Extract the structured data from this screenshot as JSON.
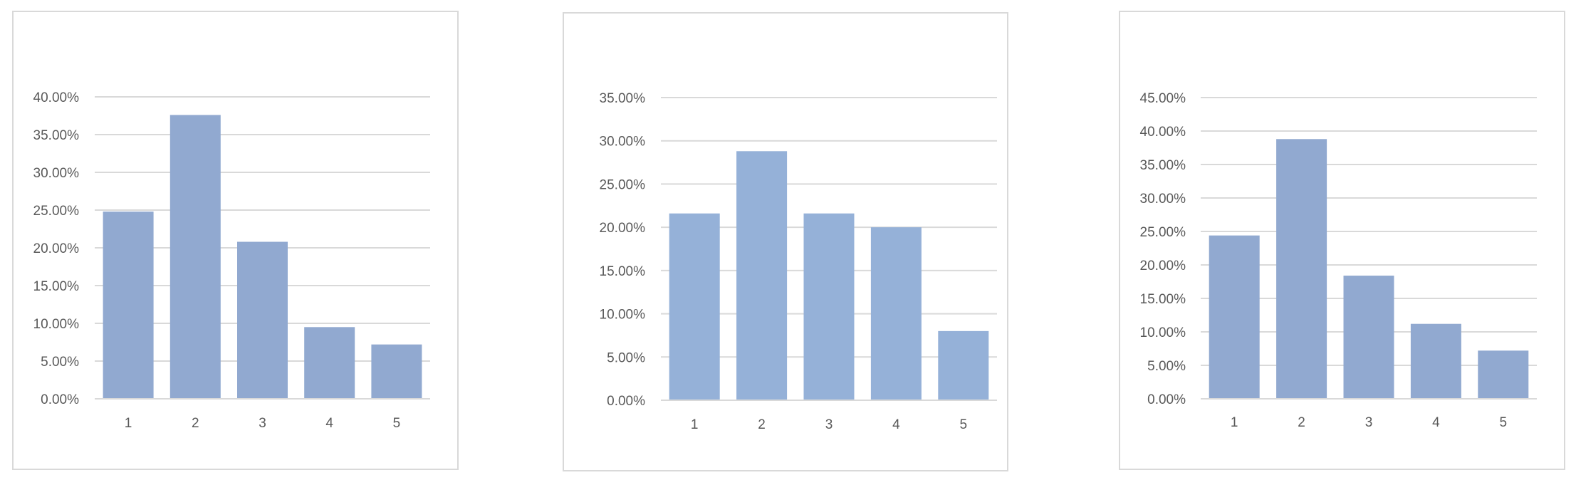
{
  "chart_data": [
    {
      "type": "bar",
      "categories": [
        "1",
        "2",
        "3",
        "4",
        "5"
      ],
      "values": [
        24.8,
        37.6,
        20.8,
        9.5,
        7.2
      ],
      "ylim": [
        0,
        40
      ],
      "yticks": [
        "0.00%",
        "5.00%",
        "10.00%",
        "15.00%",
        "20.00%",
        "25.00%",
        "30.00%",
        "35.00%",
        "40.00%"
      ],
      "grid": true,
      "bar_color": "#91a9d0"
    },
    {
      "type": "bar",
      "categories": [
        "1",
        "2",
        "3",
        "4",
        "5"
      ],
      "values": [
        21.6,
        28.8,
        21.6,
        20.0,
        8.0
      ],
      "ylim": [
        0,
        35
      ],
      "yticks": [
        "0.00%",
        "5.00%",
        "10.00%",
        "15.00%",
        "20.00%",
        "25.00%",
        "30.00%",
        "35.00%"
      ],
      "grid": true,
      "bar_color": "#95b1d8"
    },
    {
      "type": "bar",
      "categories": [
        "1",
        "2",
        "3",
        "4",
        "5"
      ],
      "values": [
        24.4,
        38.8,
        18.4,
        11.2,
        7.2
      ],
      "ylim": [
        0,
        45
      ],
      "yticks": [
        "0.00%",
        "5.00%",
        "10.00%",
        "15.00%",
        "20.00%",
        "25.00%",
        "30.00%",
        "35.00%",
        "40.00%",
        "45.00%"
      ],
      "grid": true,
      "bar_color": "#91a9d0"
    }
  ]
}
